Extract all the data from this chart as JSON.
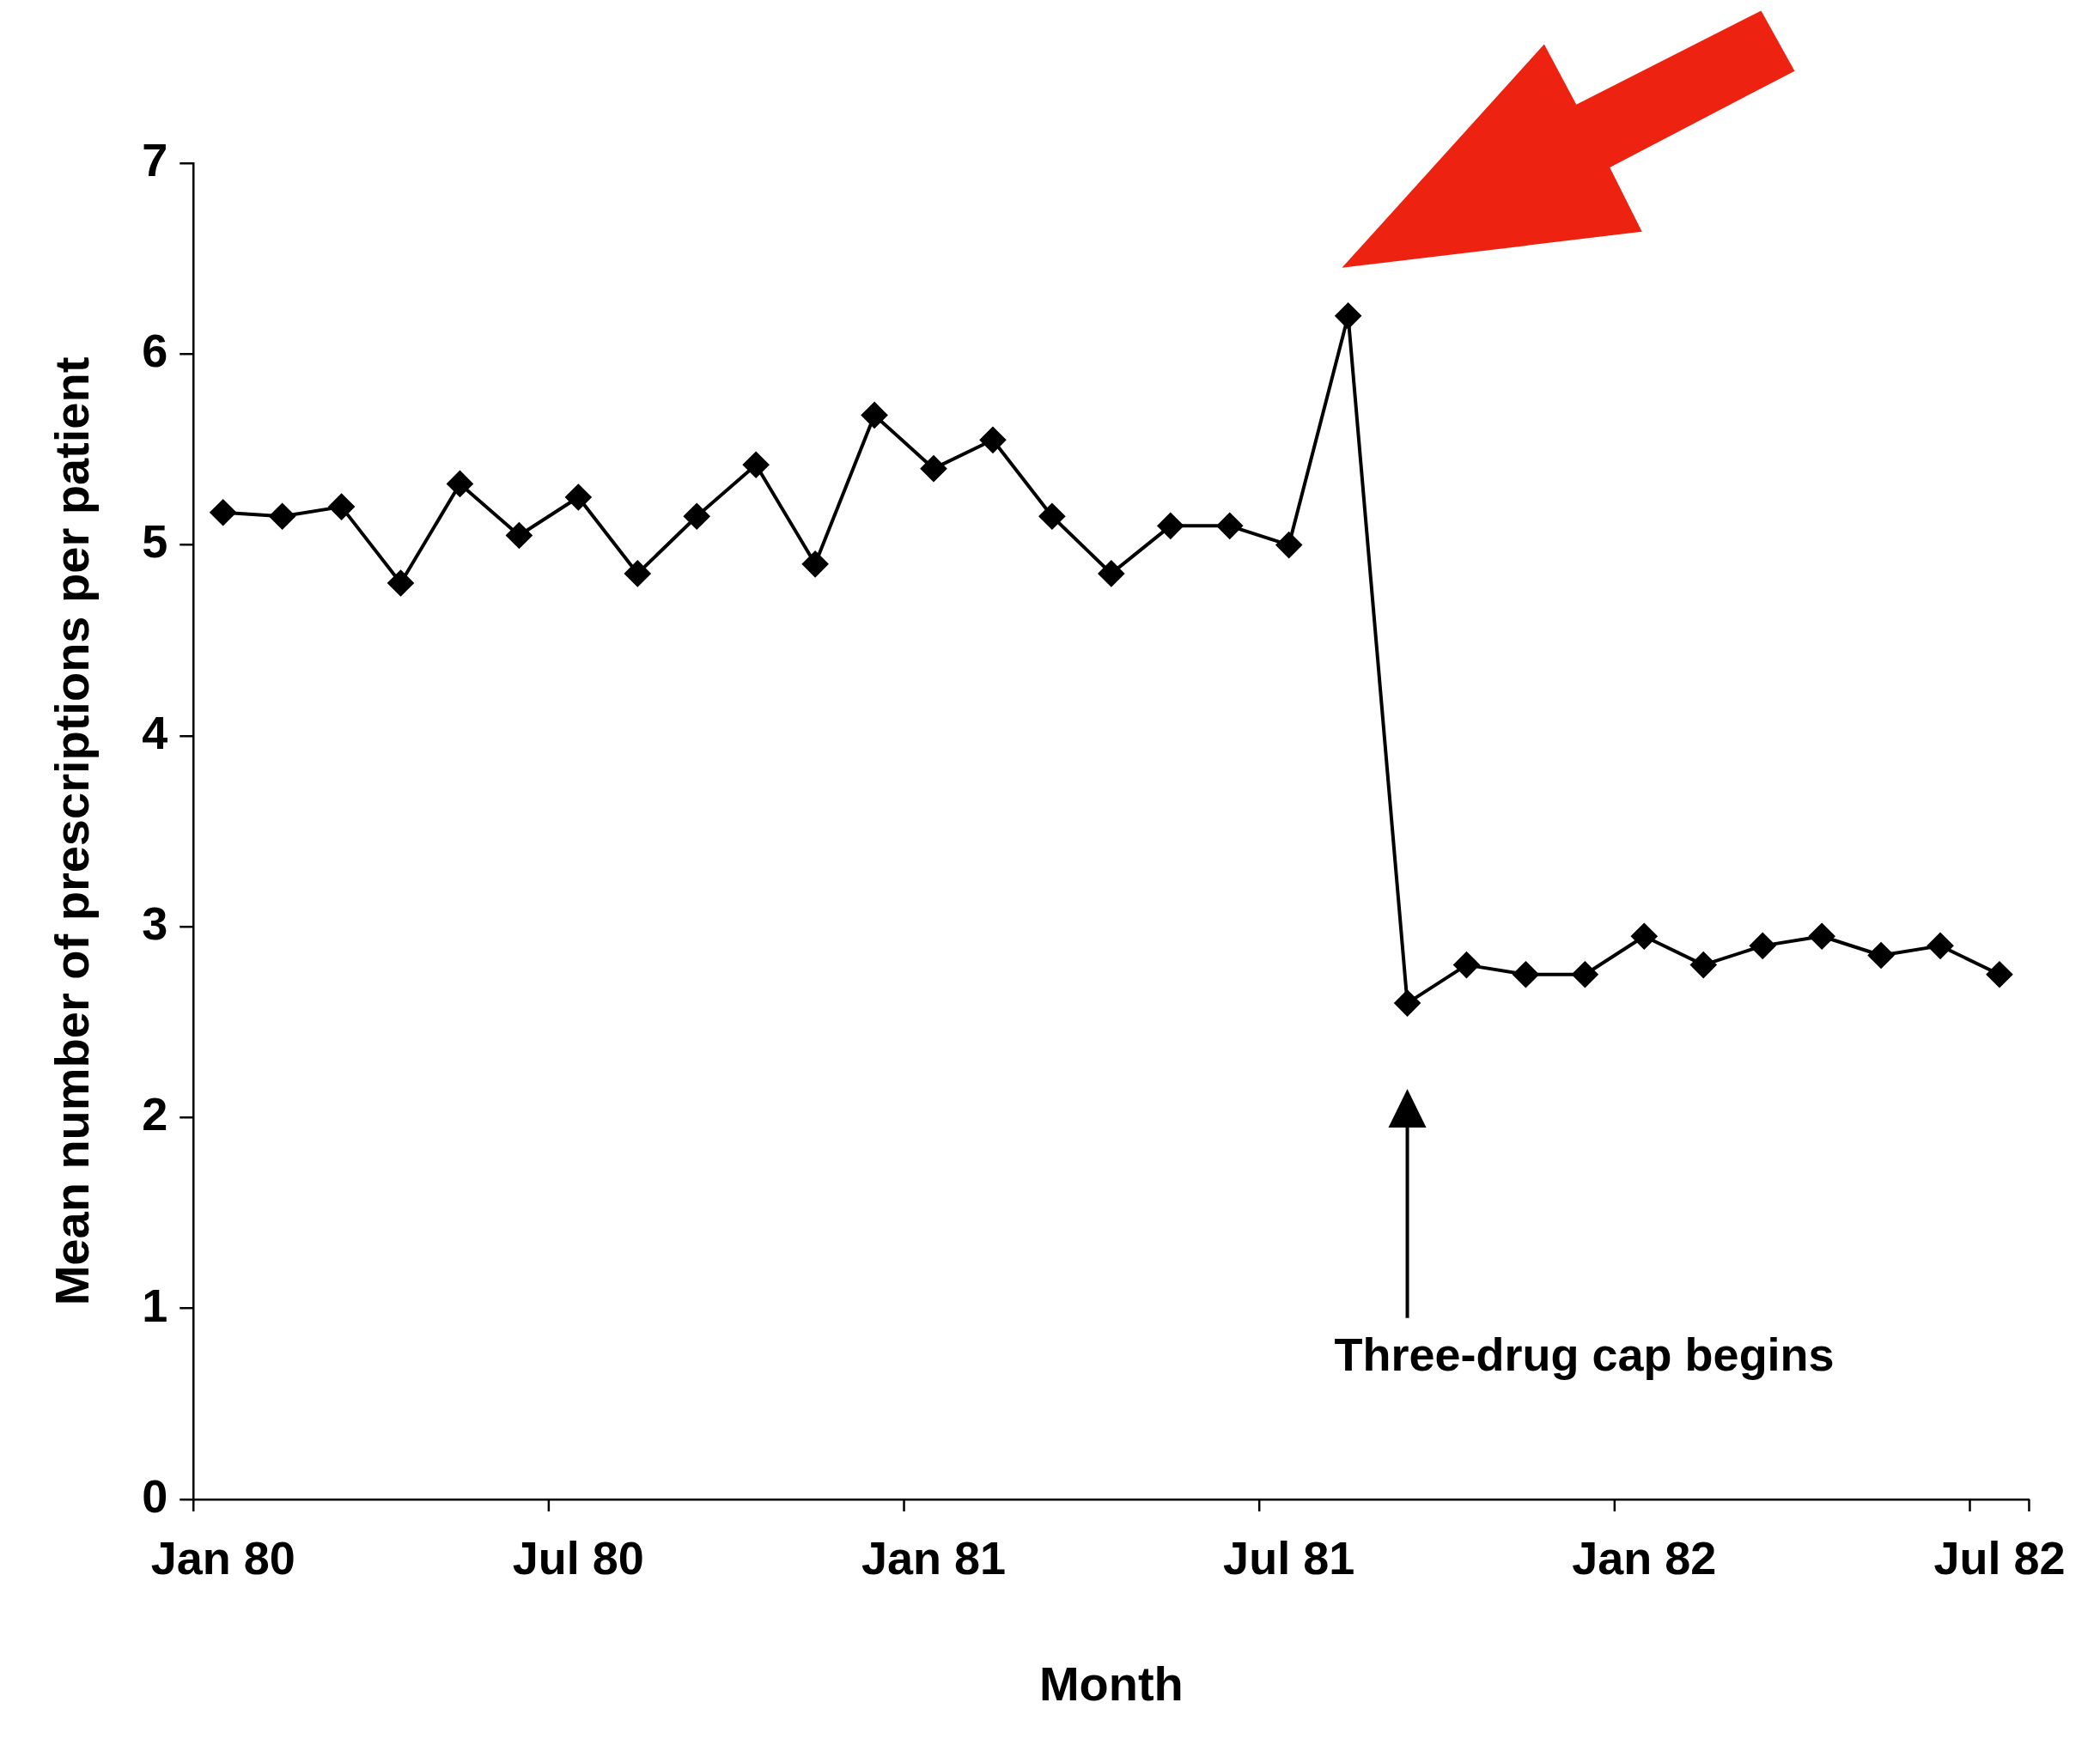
{
  "chart_data": {
    "type": "line",
    "xlabel": "Month",
    "ylabel": "Mean number of prescriptions per patient",
    "categories": [
      "Jan 80",
      null,
      null,
      null,
      null,
      null,
      "Jul 80",
      null,
      null,
      null,
      null,
      null,
      "Jan 81",
      null,
      null,
      null,
      null,
      null,
      "Jul 81",
      null,
      null,
      null,
      null,
      null,
      "Jan 82",
      null,
      null,
      null,
      null,
      null,
      "Jul 82"
    ],
    "series": [
      {
        "color": "#000000",
        "values": [
          5.17,
          5.15,
          5.2,
          4.8,
          5.32,
          5.05,
          5.25,
          4.85,
          5.15,
          5.42,
          4.9,
          5.68,
          5.4,
          5.55,
          5.15,
          4.85,
          5.1,
          5.1,
          5.0,
          6.2,
          2.6,
          2.8,
          2.75,
          2.75,
          2.95,
          2.8,
          2.9,
          2.95,
          2.85,
          2.9,
          2.75
        ]
      }
    ],
    "ylim": [
      0,
      7
    ],
    "yticks": [
      0,
      1,
      2,
      3,
      4,
      5,
      6,
      7
    ],
    "grid": false,
    "legend": false,
    "marker": "diamond",
    "line_style": "solid",
    "annotations": [
      "Three-drug cap begins"
    ]
  }
}
